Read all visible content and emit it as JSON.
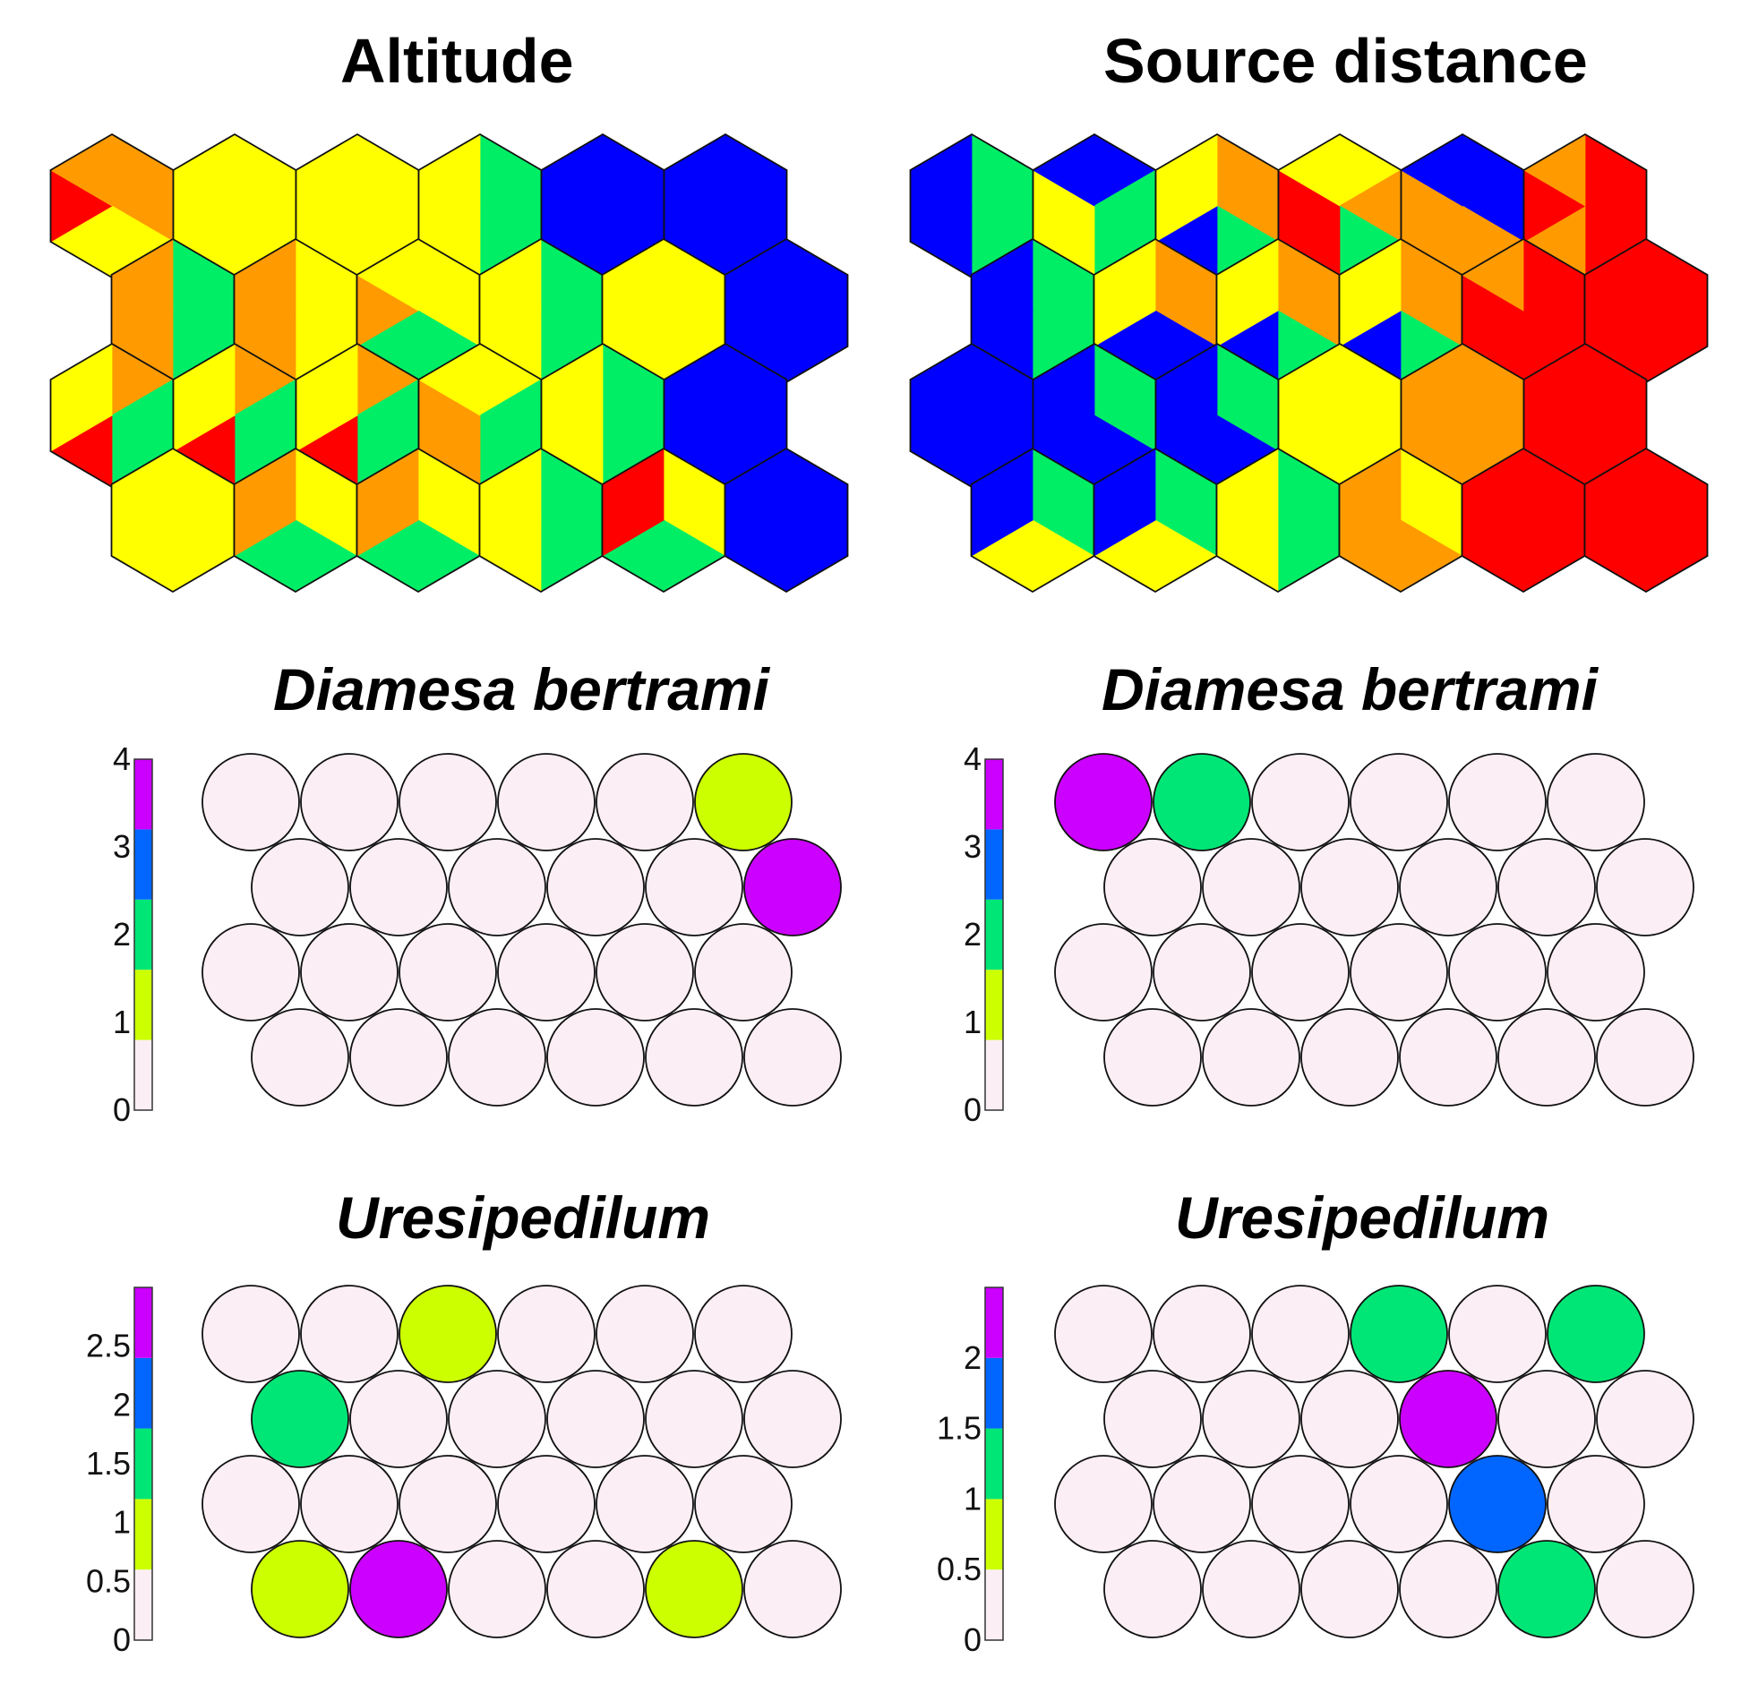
{
  "colors": {
    "red": "#ff0000",
    "orange": "#ff9b00",
    "yellow": "#ffff00",
    "green": "#00ee66",
    "blue": "#0000ff",
    "c0": "#fbeef4",
    "c1": "#ccff00",
    "c2": "#00e676",
    "c3": "#0066ff",
    "c4": "#cc00ff"
  },
  "chart_data": [
    {
      "type": "heatmap",
      "title": "Altitude",
      "grid": {
        "rows": 4,
        "cols": 6,
        "cell_shape": "hexagon"
      },
      "sectors": [
        "NE",
        "E",
        "SE",
        "SW",
        "W",
        "NW"
      ],
      "cells": [
        [
          "OOYYRO",
          "YYYYYY",
          "YYYYYY",
          "GGGYYY",
          "BBBBBB",
          "BBBBBB"
        ],
        [
          "GGGOOO",
          "YYYOOO",
          "YYGGOY",
          "GGGYYY",
          "YYYYYY",
          "BBBBBB"
        ],
        [
          "OGGRYY",
          "OGGRYY",
          "OGGRYY",
          "YGGOOY",
          "GGGYYY",
          "BBBBBB"
        ],
        [
          "YYYYYY",
          "YYGGOO",
          "YYGGOO",
          "GGGYYY",
          "YYGGRR",
          "BBBBBB"
        ]
      ]
    },
    {
      "type": "heatmap",
      "title": "Source distance",
      "grid": {
        "rows": 4,
        "cols": 6,
        "cell_shape": "hexagon"
      },
      "sectors": [
        "NE",
        "E",
        "SE",
        "SW",
        "W",
        "NW"
      ],
      "cells": [
        [
          "GGGBBB",
          "BGGYYB",
          "OOGBYY",
          "YOGRRY",
          "BBOOOB",
          "RRRORO"
        ],
        [
          "GGGBBB",
          "OOBBYY",
          "OOGBYY",
          "OOGBYY",
          "RRRRRO",
          "RRRRRR"
        ],
        [
          "BBBBBB",
          "GGBBBB",
          "GGBBBB",
          "YYYYYY",
          "OOOOOO",
          "RRRRRR"
        ],
        [
          "GGYYBB",
          "GGYYBB",
          "GGGYYY",
          "YYOOOO",
          "RRRRRR",
          "RRRRRR"
        ]
      ]
    },
    {
      "type": "heatmap",
      "title": "Diamesa bertrami",
      "grid": {
        "rows": 4,
        "cols": 6,
        "cell_shape": "circle"
      },
      "colorbar": {
        "ticks": [
          "0",
          "1",
          "2",
          "3",
          "4"
        ],
        "min": 0,
        "max": 4
      },
      "values": [
        [
          0,
          0,
          0,
          0,
          0,
          1
        ],
        [
          0,
          0,
          0,
          0,
          0,
          4
        ],
        [
          0,
          0,
          0,
          0,
          0,
          0
        ],
        [
          0,
          0,
          0,
          0,
          0,
          0
        ]
      ]
    },
    {
      "type": "heatmap",
      "title": "Diamesa bertrami",
      "grid": {
        "rows": 4,
        "cols": 6,
        "cell_shape": "circle"
      },
      "colorbar": {
        "ticks": [
          "0",
          "1",
          "2",
          "3",
          "4"
        ],
        "min": 0,
        "max": 4
      },
      "values": [
        [
          4,
          2,
          0,
          0,
          0,
          0
        ],
        [
          0,
          0,
          0,
          0,
          0,
          0
        ],
        [
          0,
          0,
          0,
          0,
          0,
          0
        ],
        [
          0,
          0,
          0,
          0,
          0,
          0
        ]
      ]
    },
    {
      "type": "heatmap",
      "title": "Uresipedilum",
      "grid": {
        "rows": 4,
        "cols": 6,
        "cell_shape": "circle"
      },
      "colorbar": {
        "ticks": [
          "0",
          "0.5",
          "1",
          "1.5",
          "2",
          "2.5"
        ],
        "min": 0,
        "max": 3
      },
      "values": [
        [
          0,
          0,
          1,
          0,
          0,
          0
        ],
        [
          1.5,
          0,
          0,
          0,
          0,
          0
        ],
        [
          0,
          0,
          0,
          0,
          0,
          0
        ],
        [
          1,
          3,
          0,
          0,
          1,
          0
        ]
      ]
    },
    {
      "type": "heatmap",
      "title": "Uresipedilum",
      "grid": {
        "rows": 4,
        "cols": 6,
        "cell_shape": "circle"
      },
      "colorbar": {
        "ticks": [
          "0",
          "0.5",
          "1",
          "1.5",
          "2"
        ],
        "min": 0,
        "max": 2.5
      },
      "values": [
        [
          0,
          0,
          0,
          1,
          0,
          1
        ],
        [
          0,
          0,
          0,
          2.5,
          0,
          0
        ],
        [
          0,
          0,
          0,
          0,
          2,
          0
        ],
        [
          0,
          0,
          0,
          0,
          1.5,
          0
        ]
      ]
    }
  ]
}
